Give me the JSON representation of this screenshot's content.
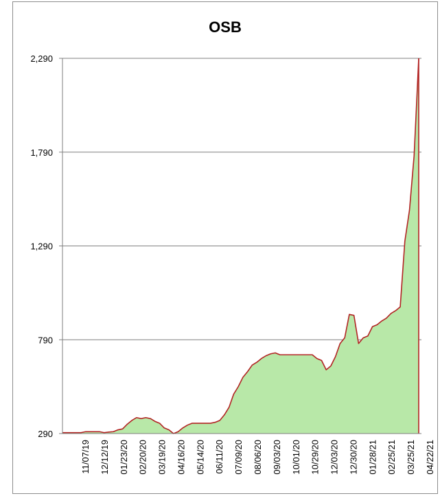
{
  "chart_data": {
    "type": "area",
    "title": "OSB",
    "xlabel": "",
    "ylabel": "",
    "ylim": [
      290,
      2290
    ],
    "y_ticks": [
      "290",
      "790",
      "1,290",
      "1,790",
      "2,290"
    ],
    "x_tick_labels": [
      "11/07/19",
      "12/12/19",
      "01/23/20",
      "02/20/20",
      "03/19/20",
      "04/16/20",
      "05/14/20",
      "06/11/20",
      "07/09/20",
      "08/06/20",
      "09/03/20",
      "10/01/20",
      "10/29/20",
      "12/03/20",
      "12/30/20",
      "01/28/21",
      "02/25/21",
      "03/25/21",
      "04/22/21"
    ],
    "grid": "horizontal",
    "colors": {
      "fill": "#b8e8a8",
      "line": "#b22222",
      "grid": "#7f7f7f"
    },
    "values": [
      295,
      295,
      295,
      295,
      295,
      300,
      300,
      300,
      300,
      295,
      298,
      300,
      310,
      315,
      340,
      360,
      375,
      370,
      375,
      370,
      355,
      345,
      320,
      310,
      290,
      300,
      320,
      335,
      345,
      345,
      345,
      345,
      345,
      350,
      360,
      390,
      430,
      500,
      540,
      590,
      620,
      655,
      670,
      690,
      705,
      715,
      720,
      710,
      710,
      710,
      710,
      710,
      710,
      710,
      710,
      690,
      680,
      630,
      650,
      700,
      770,
      800,
      925,
      920,
      770,
      800,
      810,
      860,
      870,
      890,
      905,
      930,
      945,
      965,
      1315,
      1480,
      1770,
      2290
    ]
  }
}
